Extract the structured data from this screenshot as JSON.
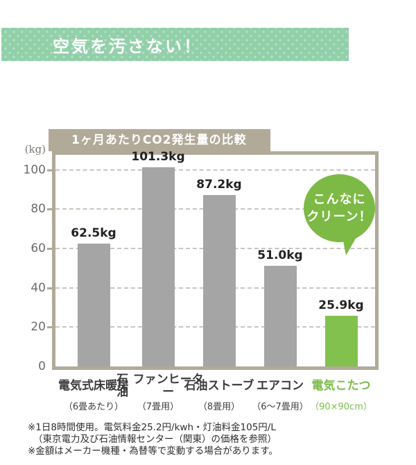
{
  "banner": {
    "title": "空気を汚さない！"
  },
  "chart": {
    "title": "1ヶ月あたりCO2発生量の比較",
    "unit_label": "(kg)"
  },
  "chart_data": {
    "type": "bar",
    "title": "1ヶ月あたりCO2発生量の比較",
    "ylabel": "(kg)",
    "ylim": [
      0,
      108
    ],
    "yticks": [
      0,
      20,
      40,
      60,
      80,
      100
    ],
    "grid": "horizontal-dashed",
    "legend": "none",
    "categories": [
      {
        "name_lines": [
          "電気式",
          "床暖房"
        ],
        "note": "（6畳あたり）"
      },
      {
        "name_lines": [
          "石油",
          "ファンヒーター"
        ],
        "note": "（7畳用）"
      },
      {
        "name_lines": [
          "石油",
          "ストーブ"
        ],
        "note": "（8畳用）"
      },
      {
        "name_lines": [
          "エアコン"
        ],
        "note": "（6～7畳用）"
      },
      {
        "name_lines": [
          "電気こたつ"
        ],
        "note": "（90×90cm）"
      }
    ],
    "values": [
      62.5,
      101.3,
      87.2,
      51.0,
      25.9
    ],
    "value_labels": [
      "62.5kg",
      "101.3kg",
      "87.2kg",
      "51.0kg",
      "25.9kg"
    ],
    "highlight_index": 4,
    "bar_color_default": "#a5a5a5",
    "bar_color_highlight": "#82c14d",
    "label_color_default": "#3c3c3c",
    "label_color_highlight": "#7bbd4a"
  },
  "bubble": {
    "line1": "こんなに",
    "line2": "クリーン！",
    "color": "#7dba45"
  },
  "footnotes": [
    "※1日8時間使用。電気料金25.2円/kwh・灯油料金105円/L",
    "（東京電力及び石油情報センター（関東）の価格を参照）",
    "※金額はメーカー機種・為替等で変動する場合があります。"
  ],
  "colors": {
    "banner_bg": "#92d0aa",
    "banner_dot": "#b9e2c8",
    "frame": "#b1aa99",
    "gridline": "#c9c5bd",
    "ytick_text": "#6b6b6b",
    "value_text": "#222222",
    "bubble_text": "#ffffff"
  }
}
